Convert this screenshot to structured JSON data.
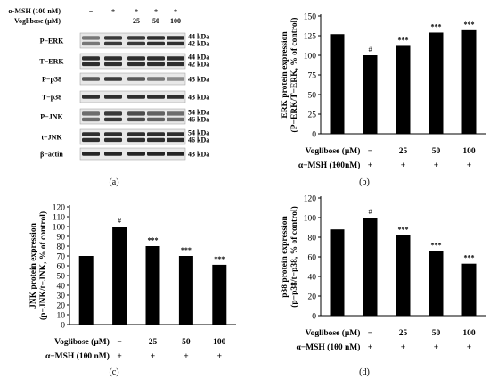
{
  "colors": {
    "bar": "#000000",
    "band": "#1a1a1a",
    "blot_bg": "#e8e8e8",
    "axis": "#000000"
  },
  "blot": {
    "panel_label": "(a)",
    "header": [
      {
        "label": "α-MSH (100 nM)",
        "values": [
          "−",
          "+",
          "+",
          "+",
          "+"
        ]
      },
      {
        "label": "Voglibose (μM)",
        "values": [
          "−",
          "−",
          "25",
          "50",
          "100"
        ]
      }
    ],
    "rows": [
      {
        "name": "P−ERK",
        "kda": [
          "44 kDa",
          "42 kDa"
        ],
        "bands": 2,
        "intensity": [
          0.55,
          0.85,
          0.85,
          0.9,
          0.9
        ]
      },
      {
        "name": "T−ERK",
        "kda": [
          "44 kDa",
          "42 kDa"
        ],
        "bands": 2,
        "intensity": [
          0.9,
          0.9,
          0.9,
          0.9,
          0.9
        ]
      },
      {
        "name": "P−p38",
        "kda": [
          "43 kDa"
        ],
        "bands": 1,
        "intensity": [
          0.7,
          0.85,
          0.7,
          0.55,
          0.45
        ]
      },
      {
        "name": "T−p38",
        "kda": [
          "43 kDa"
        ],
        "bands": 1,
        "intensity": [
          0.9,
          0.9,
          0.9,
          0.9,
          0.9
        ]
      },
      {
        "name": "P−JNK",
        "kda": [
          "54 kDa",
          "46 kDa"
        ],
        "bands": 2,
        "intensity": [
          0.6,
          0.85,
          0.75,
          0.65,
          0.6
        ]
      },
      {
        "name": "t−JNK",
        "kda": [
          "54 kDa",
          "46 kDa"
        ],
        "bands": 2,
        "intensity": [
          0.9,
          0.9,
          0.9,
          0.9,
          0.9
        ]
      },
      {
        "name": "β−actin",
        "kda": [
          "43 kDa"
        ],
        "bands": 1,
        "intensity": [
          0.95,
          0.95,
          0.95,
          0.95,
          0.95
        ]
      }
    ]
  },
  "chart_data": [
    {
      "type": "bar",
      "panel_label": "(b)",
      "ylabel": [
        "ERK protein expression",
        "(P−ERK/T−ERK, % of control)"
      ],
      "ylim": [
        0,
        150
      ],
      "yticks": [
        0,
        25,
        50,
        75,
        100,
        125,
        150
      ],
      "values": [
        127,
        100,
        112,
        129,
        132
      ],
      "sig": [
        "",
        "#",
        "***",
        "***",
        "***"
      ],
      "treat_rows": [
        {
          "label": "Voglibose (μM)",
          "values": [
            "−",
            "−",
            "25",
            "50",
            "100"
          ]
        },
        {
          "label": "α−MSH (100nM)",
          "values": [
            "−",
            "+",
            "+",
            "+",
            "+"
          ]
        }
      ],
      "grid": false
    },
    {
      "type": "bar",
      "panel_label": "(c)",
      "ylabel": [
        "JNK protein expression",
        "(p−JNK/t−JNK, % of control)"
      ],
      "ylim": [
        0,
        120
      ],
      "yticks": [
        0,
        10,
        20,
        30,
        40,
        50,
        60,
        70,
        80,
        90,
        100,
        110,
        120
      ],
      "values": [
        70,
        100,
        80,
        70,
        61
      ],
      "sig": [
        "",
        "#",
        "***",
        "***",
        "***"
      ],
      "treat_rows": [
        {
          "label": "Voglibose (μM)",
          "values": [
            "−",
            "−",
            "25",
            "50",
            "100"
          ]
        },
        {
          "label": "α−MSH (100 nM)",
          "values": [
            "−",
            "+",
            "+",
            "+",
            "+"
          ]
        }
      ],
      "grid": false
    },
    {
      "type": "bar",
      "panel_label": "(d)",
      "ylabel": [
        "p38 protein expression",
        "(p−p38/t−p38, % of control)"
      ],
      "ylim": [
        0,
        120
      ],
      "yticks": [
        0,
        20,
        40,
        60,
        80,
        100,
        120
      ],
      "values": [
        88,
        100,
        82,
        66,
        53
      ],
      "sig": [
        "",
        "#",
        "***",
        "***",
        "***"
      ],
      "treat_rows": [
        {
          "label": "Voglibose (μM)",
          "values": [
            "−",
            "−",
            "25",
            "50",
            "100"
          ]
        },
        {
          "label": "α−MSH (100 nM)",
          "values": [
            "−",
            "+",
            "+",
            "+",
            "+"
          ]
        }
      ],
      "grid": false
    }
  ]
}
